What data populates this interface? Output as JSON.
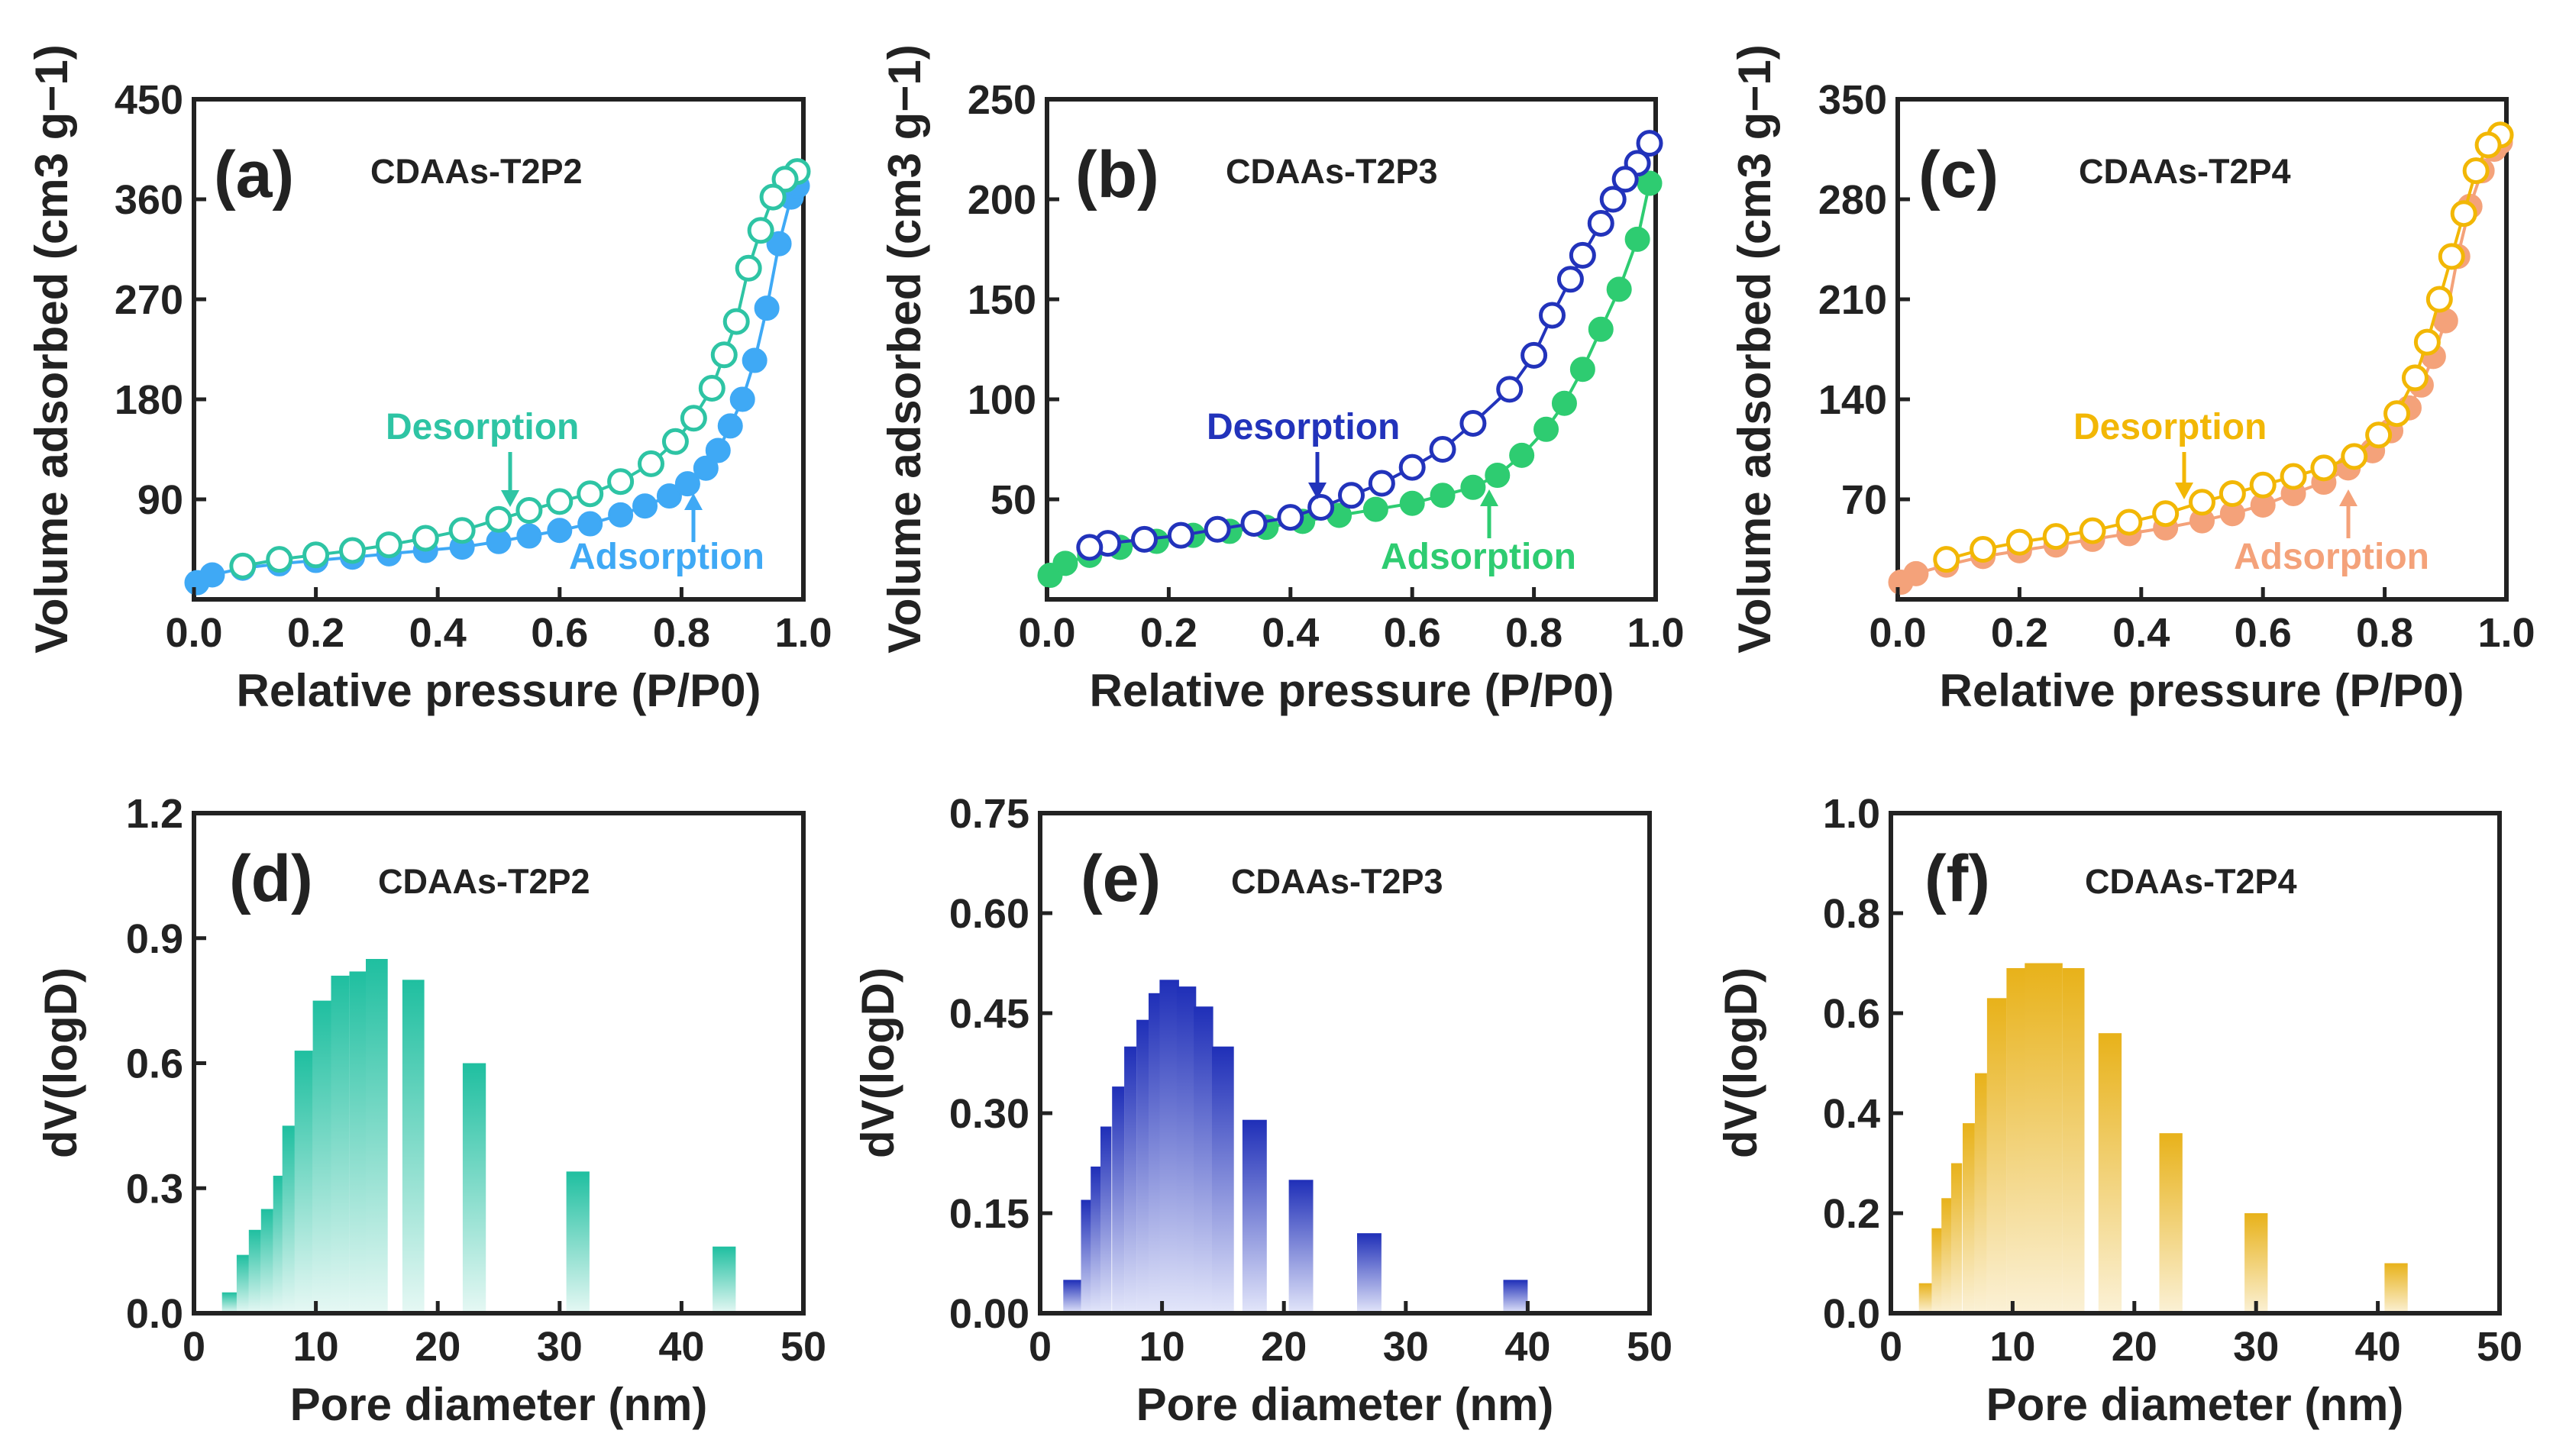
{
  "chart_data": [
    {
      "type": "line",
      "panel": "(a)",
      "sample": "CDAAs-T2P2",
      "title": "CDAAs-T2P2",
      "xlabel": "Relative pressure (P/P0)",
      "ylabel": "Volume adsorbed (cm3 g−1)",
      "xlim": [
        0.0,
        1.0
      ],
      "ylim": [
        0,
        450
      ],
      "xticks": [
        "0.0",
        "0.2",
        "0.4",
        "0.6",
        "0.8",
        "1.0"
      ],
      "yticks": [
        "90",
        "180",
        "270",
        "360",
        "450"
      ],
      "ytick_values": [
        90,
        180,
        270,
        360,
        450
      ],
      "annotations": {
        "desorption": "Desorption",
        "adsorption": "Adsorption"
      },
      "colors": {
        "desorption": "#2ec4a4",
        "adsorption": "#3fa9f5"
      },
      "series": [
        {
          "name": "Adsorption",
          "filled": true,
          "x": [
            0.005,
            0.03,
            0.08,
            0.14,
            0.2,
            0.26,
            0.32,
            0.38,
            0.44,
            0.5,
            0.55,
            0.6,
            0.65,
            0.7,
            0.74,
            0.78,
            0.81,
            0.84,
            0.86,
            0.88,
            0.9,
            0.92,
            0.94,
            0.96,
            0.98,
            0.99
          ],
          "y": [
            15,
            22,
            28,
            32,
            35,
            38,
            41,
            44,
            47,
            52,
            57,
            62,
            68,
            76,
            84,
            93,
            104,
            118,
            134,
            156,
            180,
            215,
            262,
            320,
            362,
            372
          ]
        },
        {
          "name": "Desorption",
          "filled": false,
          "x": [
            0.99,
            0.97,
            0.95,
            0.93,
            0.91,
            0.89,
            0.87,
            0.85,
            0.82,
            0.79,
            0.75,
            0.7,
            0.65,
            0.6,
            0.55,
            0.5,
            0.44,
            0.38,
            0.32,
            0.26,
            0.2,
            0.14,
            0.08
          ],
          "y": [
            385,
            378,
            362,
            332,
            298,
            250,
            220,
            190,
            163,
            142,
            122,
            106,
            95,
            88,
            80,
            72,
            62,
            55,
            49,
            44,
            40,
            36,
            30
          ]
        }
      ]
    },
    {
      "type": "line",
      "panel": "(b)",
      "sample": "CDAAs-T2P3",
      "title": "CDAAs-T2P3",
      "xlabel": "Relative pressure (P/P0)",
      "ylabel": "Volume adsorbed (cm3 g−1)",
      "xlim": [
        0.0,
        1.0
      ],
      "ylim": [
        0,
        250
      ],
      "xticks": [
        "0.0",
        "0.2",
        "0.4",
        "0.6",
        "0.8",
        "1.0"
      ],
      "yticks": [
        "50",
        "100",
        "150",
        "200",
        "250"
      ],
      "ytick_values": [
        50,
        100,
        150,
        200,
        250
      ],
      "annotations": {
        "desorption": "Desorption",
        "adsorption": "Adsorption"
      },
      "colors": {
        "desorption": "#2233bb",
        "adsorption": "#2ecc71"
      },
      "series": [
        {
          "name": "Adsorption",
          "filled": true,
          "x": [
            0.005,
            0.03,
            0.07,
            0.12,
            0.18,
            0.24,
            0.3,
            0.36,
            0.42,
            0.48,
            0.54,
            0.6,
            0.65,
            0.7,
            0.74,
            0.78,
            0.82,
            0.85,
            0.88,
            0.91,
            0.94,
            0.97,
            0.99
          ],
          "y": [
            12,
            18,
            22,
            26,
            29,
            32,
            34,
            36,
            39,
            42,
            45,
            48,
            52,
            56,
            62,
            72,
            85,
            98,
            115,
            135,
            155,
            180,
            208
          ]
        },
        {
          "name": "Desorption",
          "filled": false,
          "x": [
            0.99,
            0.97,
            0.95,
            0.93,
            0.91,
            0.88,
            0.86,
            0.83,
            0.8,
            0.76,
            0.7,
            0.65,
            0.6,
            0.55,
            0.5,
            0.45,
            0.4,
            0.34,
            0.28,
            0.22,
            0.16,
            0.1,
            0.07
          ],
          "y": [
            228,
            218,
            210,
            200,
            188,
            172,
            160,
            142,
            122,
            105,
            88,
            75,
            66,
            58,
            52,
            46,
            41,
            38,
            35,
            32,
            30,
            28,
            26
          ]
        }
      ]
    },
    {
      "type": "line",
      "panel": "(c)",
      "sample": "CDAAs-T2P4",
      "title": "CDAAs-T2P4",
      "xlabel": "Relative pressure (P/P0)",
      "ylabel": "Volume adsorbed (cm3 g−1)",
      "xlim": [
        0.0,
        1.0
      ],
      "ylim": [
        0,
        350
      ],
      "xticks": [
        "0.0",
        "0.2",
        "0.4",
        "0.6",
        "0.8",
        "1.0"
      ],
      "yticks": [
        "70",
        "140",
        "210",
        "280",
        "350"
      ],
      "ytick_values": [
        70,
        140,
        210,
        280,
        350
      ],
      "annotations": {
        "desorption": "Desorption",
        "adsorption": "Adsorption"
      },
      "colors": {
        "desorption": "#f2b705",
        "adsorption": "#f4a27a"
      },
      "series": [
        {
          "name": "Adsorption",
          "filled": true,
          "x": [
            0.005,
            0.03,
            0.08,
            0.14,
            0.2,
            0.26,
            0.32,
            0.38,
            0.44,
            0.5,
            0.55,
            0.6,
            0.65,
            0.7,
            0.74,
            0.78,
            0.81,
            0.84,
            0.86,
            0.88,
            0.9,
            0.92,
            0.94,
            0.96,
            0.98,
            0.99
          ],
          "y": [
            12,
            18,
            24,
            30,
            34,
            38,
            42,
            46,
            50,
            55,
            60,
            66,
            74,
            82,
            92,
            104,
            118,
            134,
            150,
            170,
            195,
            240,
            275,
            300,
            315,
            320
          ]
        },
        {
          "name": "Desorption",
          "filled": false,
          "x": [
            0.99,
            0.97,
            0.95,
            0.93,
            0.91,
            0.89,
            0.87,
            0.85,
            0.82,
            0.79,
            0.75,
            0.7,
            0.65,
            0.6,
            0.55,
            0.5,
            0.44,
            0.38,
            0.32,
            0.26,
            0.2,
            0.14,
            0.08
          ],
          "y": [
            325,
            318,
            300,
            270,
            240,
            210,
            180,
            155,
            130,
            115,
            100,
            92,
            86,
            80,
            74,
            68,
            60,
            54,
            48,
            44,
            40,
            35,
            28
          ]
        }
      ]
    },
    {
      "type": "bar",
      "panel": "(d)",
      "sample": "CDAAs-T2P2",
      "title": "CDAAs-T2P2",
      "xlabel": "Pore diameter (nm)",
      "ylabel": "dV(logD)",
      "xlim": [
        0,
        50
      ],
      "ylim": [
        0,
        1.2
      ],
      "xticks": [
        "0",
        "10",
        "20",
        "30",
        "40",
        "50"
      ],
      "xtick_values": [
        0,
        10,
        20,
        30,
        40,
        50
      ],
      "yticks": [
        "0.0",
        "0.3",
        "0.6",
        "0.9",
        "1.2"
      ],
      "ytick_values": [
        0,
        0.3,
        0.6,
        0.9,
        1.2
      ],
      "color": "#1fbfa0",
      "x": [
        3.0,
        4.0,
        5.0,
        6.0,
        7.0,
        8.0,
        9.0,
        10.5,
        12.0,
        13.5,
        15.0,
        18.0,
        23.0,
        31.5,
        43.5
      ],
      "values": [
        0.05,
        0.14,
        0.2,
        0.25,
        0.33,
        0.45,
        0.63,
        0.75,
        0.81,
        0.82,
        0.85,
        0.8,
        0.6,
        0.34,
        0.16
      ],
      "widths": [
        1.4,
        1.0,
        1.0,
        1.0,
        1.0,
        1.5,
        1.5,
        1.5,
        1.5,
        1.5,
        1.8,
        1.8,
        1.9,
        1.9,
        1.9
      ]
    },
    {
      "type": "bar",
      "panel": "(e)",
      "sample": "CDAAs-T2P3",
      "title": "CDAAs-T2P3",
      "xlabel": "Pore diameter (nm)",
      "ylabel": "dV(logD)",
      "xlim": [
        0,
        50
      ],
      "ylim": [
        0,
        0.75
      ],
      "xticks": [
        "0",
        "10",
        "20",
        "30",
        "40",
        "50"
      ],
      "xtick_values": [
        0,
        10,
        20,
        30,
        40,
        50
      ],
      "yticks": [
        "0.00",
        "0.15",
        "0.30",
        "0.45",
        "0.60",
        "0.75"
      ],
      "ytick_values": [
        0,
        0.15,
        0.3,
        0.45,
        0.6,
        0.75
      ],
      "color": "#1f2fb8",
      "x": [
        2.8,
        3.8,
        4.6,
        5.4,
        6.4,
        7.4,
        8.4,
        9.4,
        10.6,
        12.0,
        13.4,
        15.0,
        17.6,
        21.4,
        27.0,
        39.0
      ],
      "values": [
        0.05,
        0.17,
        0.22,
        0.28,
        0.34,
        0.4,
        0.44,
        0.48,
        0.5,
        0.49,
        0.46,
        0.4,
        0.29,
        0.2,
        0.12,
        0.05
      ],
      "widths": [
        1.8,
        0.9,
        0.9,
        0.9,
        1.0,
        1.0,
        1.0,
        1.0,
        1.6,
        1.6,
        1.6,
        1.8,
        2.0,
        2.0,
        2.0,
        2.0
      ]
    },
    {
      "type": "bar",
      "panel": "(f)",
      "sample": "CDAAs-T2P4",
      "title": "CDAAs-T2P4",
      "xlabel": "Pore diameter (nm)",
      "ylabel": "dV(logD)",
      "xlim": [
        0,
        50
      ],
      "ylim": [
        0,
        1.0
      ],
      "xticks": [
        "0",
        "10",
        "20",
        "30",
        "40",
        "50"
      ],
      "xtick_values": [
        0,
        10,
        20,
        30,
        40,
        50
      ],
      "yticks": [
        "0.0",
        "0.2",
        "0.4",
        "0.6",
        "0.8",
        "1.0"
      ],
      "ytick_values": [
        0,
        0.2,
        0.4,
        0.6,
        0.8,
        1.0
      ],
      "color": "#e8b21a",
      "x": [
        3.0,
        3.8,
        4.6,
        5.4,
        6.4,
        7.4,
        8.7,
        10.3,
        11.8,
        13.3,
        15.0,
        18.0,
        23.0,
        30.0,
        41.5
      ],
      "values": [
        0.06,
        0.17,
        0.23,
        0.3,
        0.38,
        0.48,
        0.63,
        0.69,
        0.7,
        0.7,
        0.69,
        0.56,
        0.36,
        0.2,
        0.1
      ],
      "widths": [
        1.4,
        0.9,
        0.9,
        0.9,
        1.0,
        1.0,
        1.6,
        1.6,
        1.6,
        1.6,
        1.8,
        1.9,
        1.9,
        1.9,
        1.9
      ]
    }
  ]
}
